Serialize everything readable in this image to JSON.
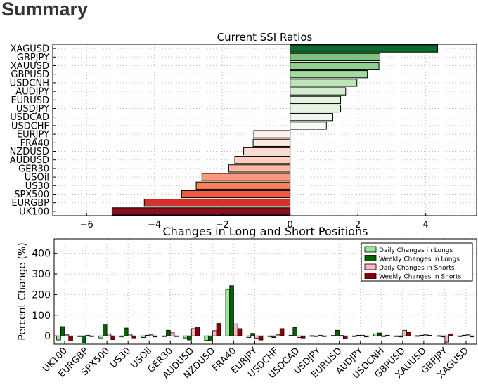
{
  "page": {
    "title": "Summary"
  },
  "chart_data": [
    {
      "type": "bar",
      "orientation": "horizontal",
      "title": "Current SSI Ratios",
      "xlabel": "",
      "ylabel": "",
      "xlim": [
        -7,
        5.5
      ],
      "xticks": [
        -6,
        -4,
        -2,
        0,
        2,
        4
      ],
      "grid": true,
      "categories": [
        "XAGUSD",
        "GBPJPY",
        "XAUUSD",
        "GBPUSD",
        "USDCNH",
        "AUDJPY",
        "EURUSD",
        "USDJPY",
        "USDCAD",
        "USDCHF",
        "EURJPY",
        "FRA40",
        "NZDUSD",
        "AUDUSD",
        "GER30",
        "USOil",
        "US30",
        "SPX500",
        "EURGBP",
        "UK100"
      ],
      "values": [
        4.35,
        2.65,
        2.62,
        2.28,
        1.97,
        1.64,
        1.49,
        1.49,
        1.26,
        1.07,
        -1.07,
        -1.09,
        -1.37,
        -1.63,
        -1.81,
        -2.6,
        -2.77,
        -3.2,
        -4.3,
        -5.25
      ],
      "colors": [
        "#0a6b2e",
        "#7cc47c",
        "#8fd08f",
        "#a2d9a0",
        "#bce6b8",
        "#d2efcd",
        "#e2f4dd",
        "#e6f5e1",
        "#eef8ea",
        "#f6fcf4",
        "#fff0ea",
        "#ffeae1",
        "#fddccf",
        "#fcd0bd",
        "#fcbca4",
        "#fb9a7a",
        "#f9825f",
        "#ee5a40",
        "#d7312a",
        "#86101c"
      ]
    },
    {
      "type": "bar",
      "title": "Changes in Long and Short Positions",
      "xlabel": "",
      "ylabel": "Percent Change (%)",
      "ylim": [
        -40,
        470
      ],
      "yticks": [
        0,
        100,
        200,
        300,
        400
      ],
      "grid": true,
      "legend_position": "top-right",
      "categories": [
        "UK100",
        "EURGBP",
        "SPX500",
        "US30",
        "USOil",
        "GER30",
        "AUDUSD",
        "NZDUSD",
        "FRA40",
        "EURJPY",
        "USDCHF",
        "USDCAD",
        "USDJPY",
        "EURUSD",
        "AUDJPY",
        "USDCNH",
        "GBPUSD",
        "XAUUSD",
        "GBPJPY",
        "XAGUSD"
      ],
      "series": [
        {
          "name": "Daily Changes in Longs",
          "color": "#90ee90",
          "values": [
            -20,
            0,
            -10,
            -5,
            -8,
            -3,
            -10,
            -22,
            225,
            -8,
            -3,
            3,
            1,
            2,
            -3,
            10,
            -3,
            1,
            1,
            0
          ]
        },
        {
          "name": "Weekly Changes in Longs",
          "color": "#006400",
          "values": [
            45,
            -35,
            53,
            38,
            3,
            27,
            -20,
            -25,
            243,
            12,
            -8,
            40,
            -2,
            27,
            3,
            14,
            -5,
            3,
            -5,
            3
          ]
        },
        {
          "name": "Daily Changes in Shorts",
          "color": "#ffb6c1",
          "values": [
            5,
            3,
            10,
            8,
            5,
            15,
            35,
            25,
            58,
            -12,
            5,
            -8,
            3,
            2,
            3,
            -3,
            27,
            5,
            -30,
            5
          ]
        },
        {
          "name": "Weekly Changes in Shorts",
          "color": "#8b0000",
          "values": [
            -25,
            0,
            -18,
            -10,
            -5,
            -2,
            43,
            60,
            35,
            -20,
            35,
            -10,
            -3,
            -15,
            -5,
            3,
            18,
            3,
            10,
            -5
          ]
        }
      ]
    }
  ]
}
